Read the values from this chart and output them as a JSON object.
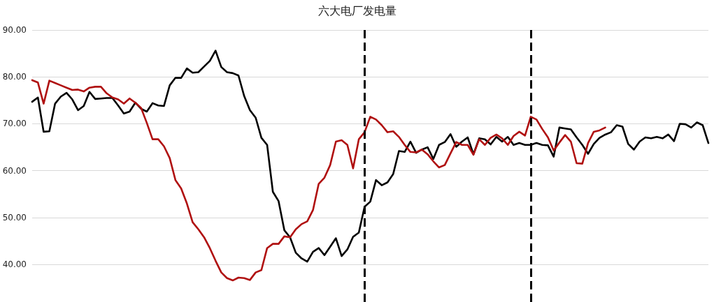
{
  "chart_data": {
    "type": "line",
    "title": "六大电厂发电量",
    "categories": [
      null,
      null,
      null,
      null,
      null,
      null,
      null,
      null,
      null,
      null,
      null,
      null,
      null,
      null,
      null,
      null,
      null,
      null,
      null,
      null,
      null,
      null,
      null,
      null,
      null,
      null,
      null,
      null,
      null,
      null,
      null,
      null,
      null,
      null,
      null,
      null,
      null,
      null,
      null,
      null,
      null,
      null,
      null,
      null,
      null,
      null,
      null,
      null,
      null,
      null,
      null,
      null,
      null,
      null,
      null,
      null,
      null,
      null,
      null,
      null,
      null,
      null,
      null,
      null,
      null,
      null,
      null,
      null,
      null,
      null,
      null,
      null,
      null,
      null,
      null,
      null,
      null,
      null,
      null,
      null,
      null,
      null,
      null,
      null,
      null,
      null,
      null,
      null,
      null,
      null,
      null,
      null,
      null,
      null,
      null,
      null,
      null,
      null,
      null,
      null,
      null,
      null,
      null,
      null,
      null,
      null,
      null,
      null,
      null,
      null,
      null,
      null,
      null,
      null,
      null,
      null,
      null,
      null,
      null
    ],
    "ylim": [
      32,
      90
    ],
    "yticks": [
      {
        "value": 40,
        "label": "40.00"
      },
      {
        "value": 50,
        "label": "50.00"
      },
      {
        "value": 60,
        "label": "60.00"
      },
      {
        "value": 70,
        "label": "70.00"
      },
      {
        "value": 80,
        "label": "80.00"
      },
      {
        "value": 90,
        "label": "90.00"
      }
    ],
    "tick_labels": "y",
    "grid": "y",
    "line_style": "solid",
    "series": [
      {
        "color": "#000000",
        "values": [
          74.7,
          75.6,
          68.3,
          68.4,
          74.3,
          75.8,
          76.6,
          75.2,
          72.9,
          73.8,
          76.8,
          75.3,
          75.4,
          75.5,
          75.5,
          73.9,
          72.2,
          72.6,
          74.5,
          73.2,
          72.6,
          74.4,
          73.9,
          73.8,
          78.2,
          79.8,
          79.8,
          81.8,
          80.9,
          81.0,
          82.2,
          83.4,
          85.6,
          82.1,
          81.0,
          80.8,
          80.3,
          75.9,
          72.9,
          71.3,
          67.0,
          65.5,
          55.5,
          53.5,
          47.3,
          45.8,
          42.5,
          41.3,
          40.6,
          42.7,
          43.5,
          42.0,
          43.8,
          45.6,
          41.8,
          43.2,
          45.9,
          46.8,
          52.3,
          53.4,
          58.0,
          56.9,
          57.5,
          59.3,
          64.2,
          64.0,
          66.2,
          63.8,
          64.5,
          65.0,
          62.5,
          65.5,
          66.1,
          67.8,
          65.1,
          66.2,
          67.1,
          63.5,
          66.9,
          66.7,
          65.6,
          67.2,
          66.2,
          67.2,
          65.5,
          65.9,
          65.5,
          65.5,
          65.9,
          65.5,
          65.4,
          63.0,
          69.2,
          69.0,
          68.8,
          67.1,
          65.5,
          63.6,
          65.7,
          67.0,
          67.7,
          68.2,
          69.7,
          69.4,
          65.7,
          64.5,
          66.2,
          67.1,
          66.9,
          67.2,
          66.9,
          67.7,
          66.3,
          70.0,
          69.9,
          69.2,
          70.3,
          69.7,
          65.9
        ]
      },
      {
        "color": "#b01010",
        "values": [
          79.3,
          78.8,
          74.3,
          79.2,
          78.7,
          78.2,
          77.7,
          77.2,
          77.3,
          76.9,
          77.7,
          77.9,
          77.9,
          76.5,
          75.6,
          75.2,
          74.3,
          75.4,
          74.5,
          73.4,
          70.2,
          66.7,
          66.7,
          65.2,
          62.7,
          58.0,
          56.2,
          53.0,
          49.0,
          47.5,
          45.8,
          43.5,
          40.8,
          38.3,
          37.1,
          36.6,
          37.2,
          37.1,
          36.7,
          38.3,
          38.8,
          43.5,
          44.4,
          44.4,
          46.0,
          45.8,
          47.5,
          48.6,
          49.2,
          51.6,
          57.2,
          58.5,
          61.2,
          66.2,
          66.5,
          65.5,
          60.5,
          66.7,
          68.2,
          71.5,
          70.9,
          69.7,
          68.2,
          68.4,
          67.2,
          65.5,
          64.0,
          63.9,
          64.5,
          63.5,
          62.0,
          60.7,
          61.2,
          63.7,
          66.1,
          65.5,
          65.5,
          63.4,
          66.7,
          65.5,
          67.0,
          67.7,
          66.9,
          65.5,
          67.4,
          68.3,
          67.5,
          71.5,
          70.9,
          68.9,
          67.1,
          64.3,
          66.0,
          67.6,
          66.2,
          61.6,
          61.5,
          65.9,
          68.3,
          68.6,
          69.2,
          null,
          null,
          null,
          null,
          null,
          null,
          null,
          null,
          null,
          null,
          null,
          null,
          null,
          null,
          null,
          null,
          null,
          null
        ]
      }
    ]
  }
}
